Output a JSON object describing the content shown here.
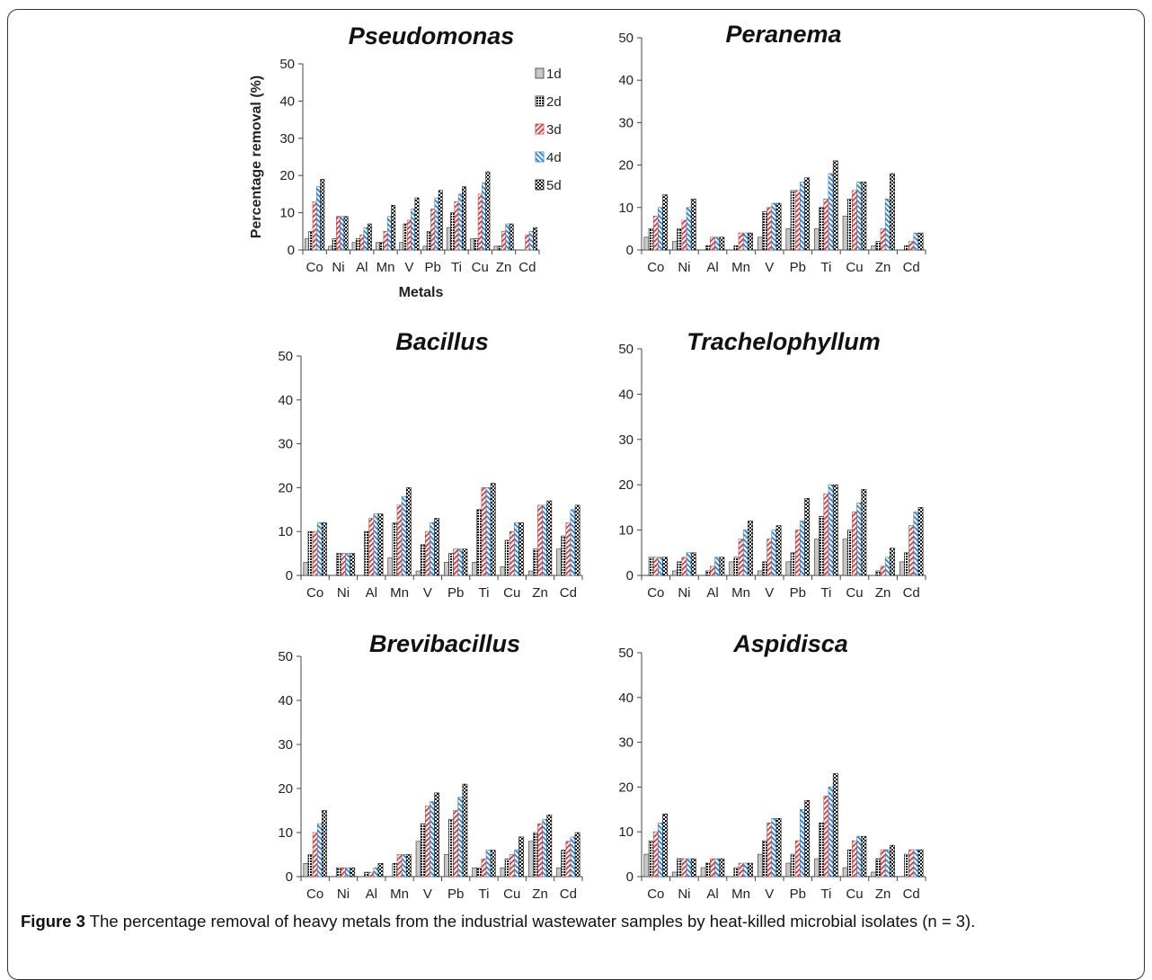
{
  "caption": {
    "label": "Figure 3",
    "text": "The percentage removal of heavy metals from the industrial wastewater samples by heat-killed microbial isolates (n = 3)."
  },
  "legend_labels": [
    "1d",
    "2d",
    "3d",
    "4d",
    "5d"
  ],
  "chart_data": [
    {
      "type": "bar",
      "title": "Pseudomonas",
      "xlabel": "Metals",
      "ylabel": "Percentage removal (%)",
      "ylim": [
        0,
        50
      ],
      "yticks": [
        0,
        10,
        20,
        30,
        40,
        50
      ],
      "legend": "right",
      "categories": [
        "Co",
        "Ni",
        "Al",
        "Mn",
        "V",
        "Pb",
        "Ti",
        "Cu",
        "Zn",
        "Cd"
      ],
      "series": [
        {
          "name": "1d",
          "values": [
            3,
            1,
            2,
            2,
            2,
            1,
            6,
            3,
            1,
            0
          ]
        },
        {
          "name": "2d",
          "values": [
            5,
            3,
            3,
            2,
            7,
            5,
            10,
            3,
            1,
            0
          ]
        },
        {
          "name": "3d",
          "values": [
            13,
            9,
            4,
            5,
            8,
            11,
            13,
            15,
            5,
            4
          ]
        },
        {
          "name": "4d",
          "values": [
            17,
            9,
            6,
            9,
            11,
            14,
            15,
            18,
            7,
            5
          ]
        },
        {
          "name": "5d",
          "values": [
            19,
            9,
            7,
            12,
            14,
            16,
            17,
            21,
            7,
            6
          ]
        }
      ]
    },
    {
      "type": "bar",
      "title": "Peranema",
      "ylim": [
        0,
        50
      ],
      "yticks": [
        0,
        10,
        20,
        30,
        40,
        50
      ],
      "categories": [
        "Co",
        "Ni",
        "Al",
        "Mn",
        "V",
        "Pb",
        "Ti",
        "Cu",
        "Zn",
        "Cd"
      ],
      "series": [
        {
          "name": "1d",
          "values": [
            3,
            2,
            0,
            0,
            3,
            5,
            5,
            8,
            1,
            0
          ]
        },
        {
          "name": "2d",
          "values": [
            5,
            5,
            1,
            1,
            9,
            14,
            10,
            12,
            2,
            1
          ]
        },
        {
          "name": "3d",
          "values": [
            8,
            7,
            3,
            4,
            10,
            14,
            12,
            14,
            5,
            2
          ]
        },
        {
          "name": "4d",
          "values": [
            10,
            10,
            3,
            4,
            11,
            16,
            18,
            16,
            12,
            4
          ]
        },
        {
          "name": "5d",
          "values": [
            13,
            12,
            3,
            4,
            11,
            17,
            21,
            16,
            18,
            4
          ]
        }
      ]
    },
    {
      "type": "bar",
      "title": "Bacillus",
      "ylim": [
        0,
        50
      ],
      "yticks": [
        0,
        10,
        20,
        30,
        40,
        50
      ],
      "categories": [
        "Co",
        "Ni",
        "Al",
        "Mn",
        "V",
        "Pb",
        "Ti",
        "Cu",
        "Zn",
        "Cd"
      ],
      "series": [
        {
          "name": "1d",
          "values": [
            3,
            0,
            0,
            4,
            1,
            3,
            3,
            2,
            1,
            6
          ]
        },
        {
          "name": "2d",
          "values": [
            10,
            5,
            10,
            12,
            7,
            5,
            15,
            8,
            6,
            9
          ]
        },
        {
          "name": "3d",
          "values": [
            10,
            5,
            13,
            16,
            10,
            6,
            20,
            10,
            16,
            12
          ]
        },
        {
          "name": "4d",
          "values": [
            12,
            5,
            14,
            18,
            12,
            6,
            20,
            12,
            16,
            15
          ]
        },
        {
          "name": "5d",
          "values": [
            12,
            5,
            14,
            20,
            13,
            6,
            21,
            12,
            17,
            16
          ]
        }
      ]
    },
    {
      "type": "bar",
      "title": "Trachelophyllum",
      "ylim": [
        0,
        50
      ],
      "yticks": [
        0,
        10,
        20,
        30,
        40,
        50
      ],
      "categories": [
        "Co",
        "Ni",
        "Al",
        "Mn",
        "V",
        "Pb",
        "Ti",
        "Cu",
        "Zn",
        "Cd"
      ],
      "series": [
        {
          "name": "1d",
          "values": [
            0,
            1,
            0,
            3,
            1,
            3,
            8,
            8,
            0,
            3
          ]
        },
        {
          "name": "2d",
          "values": [
            4,
            3,
            1,
            4,
            3,
            5,
            13,
            10,
            1,
            5
          ]
        },
        {
          "name": "3d",
          "values": [
            4,
            4,
            2,
            8,
            8,
            10,
            18,
            14,
            2,
            11
          ]
        },
        {
          "name": "4d",
          "values": [
            4,
            5,
            4,
            10,
            10,
            12,
            20,
            16,
            4,
            14
          ]
        },
        {
          "name": "5d",
          "values": [
            4,
            5,
            4,
            12,
            11,
            17,
            20,
            19,
            6,
            15
          ]
        }
      ]
    },
    {
      "type": "bar",
      "title": "Brevibacillus",
      "ylim": [
        0,
        50
      ],
      "yticks": [
        0,
        10,
        20,
        30,
        40,
        50
      ],
      "categories": [
        "Co",
        "Ni",
        "Al",
        "Mn",
        "V",
        "Pb",
        "Ti",
        "Cu",
        "Zn",
        "Cd"
      ],
      "series": [
        {
          "name": "1d",
          "values": [
            3,
            0,
            0,
            0,
            8,
            5,
            2,
            2,
            8,
            2
          ]
        },
        {
          "name": "2d",
          "values": [
            5,
            2,
            1,
            3,
            12,
            13,
            2,
            4,
            10,
            6
          ]
        },
        {
          "name": "3d",
          "values": [
            10,
            2,
            1,
            5,
            16,
            15,
            4,
            5,
            12,
            8
          ]
        },
        {
          "name": "4d",
          "values": [
            12,
            2,
            2,
            5,
            17,
            18,
            6,
            6,
            13,
            9
          ]
        },
        {
          "name": "5d",
          "values": [
            15,
            2,
            3,
            5,
            19,
            21,
            6,
            9,
            14,
            10
          ]
        }
      ]
    },
    {
      "type": "bar",
      "title": "Aspidisca",
      "ylim": [
        0,
        50
      ],
      "yticks": [
        0,
        10,
        20,
        30,
        40,
        50
      ],
      "categories": [
        "Co",
        "Ni",
        "Al",
        "Mn",
        "V",
        "Pb",
        "Ti",
        "Cu",
        "Zn",
        "Cd"
      ],
      "series": [
        {
          "name": "1d",
          "values": [
            5,
            1,
            2,
            0,
            5,
            3,
            4,
            2,
            1,
            0
          ]
        },
        {
          "name": "2d",
          "values": [
            8,
            4,
            3,
            2,
            8,
            5,
            12,
            6,
            4,
            5
          ]
        },
        {
          "name": "3d",
          "values": [
            10,
            4,
            4,
            3,
            12,
            8,
            18,
            8,
            6,
            6
          ]
        },
        {
          "name": "4d",
          "values": [
            12,
            4,
            4,
            3,
            13,
            15,
            20,
            9,
            6,
            6
          ]
        },
        {
          "name": "5d",
          "values": [
            14,
            4,
            4,
            3,
            13,
            17,
            23,
            9,
            7,
            6
          ]
        }
      ]
    }
  ]
}
